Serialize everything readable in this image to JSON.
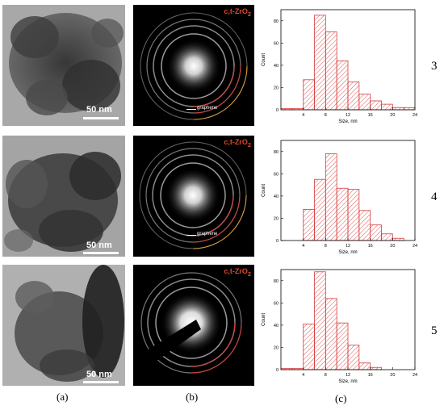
{
  "rows": [
    {
      "sample": "3",
      "tem": {
        "scale_label": "50 nm"
      },
      "saed": {
        "phase_label": "c,t-ZrO",
        "phase_sub": "2",
        "graphene_label": "graphene"
      }
    },
    {
      "sample": "4",
      "tem": {
        "scale_label": "50 nm"
      },
      "saed": {
        "phase_label": "c,t-ZrO",
        "phase_sub": "2",
        "graphene_label": "graphene"
      }
    },
    {
      "sample": "5",
      "tem": {
        "scale_label": "50 nm"
      },
      "saed": {
        "phase_label": "c,t-ZrO",
        "phase_sub": "2",
        "graphene_label": ""
      }
    }
  ],
  "column_labels": [
    "(a)",
    "(b)",
    "(c)"
  ],
  "colors": {
    "bar_edge": "#d43c3c",
    "hatch": "#e05555",
    "phase_text": "#e0472a"
  },
  "chart_data": [
    {
      "type": "bar",
      "xlabel": "Size, nm",
      "ylabel": "Count",
      "xlim": [
        0,
        24
      ],
      "ylim": [
        0,
        90
      ],
      "xticks": [
        4,
        8,
        12,
        16,
        20,
        24
      ],
      "yticks": [
        0,
        20,
        40,
        60,
        80
      ],
      "bin_width": 2,
      "bins": [
        0,
        2,
        4,
        6,
        8,
        10,
        12,
        14,
        16,
        18,
        20,
        22
      ],
      "values": [
        1,
        1,
        27,
        85,
        70,
        44,
        25,
        14,
        8,
        5,
        2,
        2
      ]
    },
    {
      "type": "bar",
      "xlabel": "Size, nm",
      "ylabel": "Count",
      "xlim": [
        0,
        24
      ],
      "ylim": [
        0,
        90
      ],
      "xticks": [
        4,
        8,
        12,
        16,
        20,
        24
      ],
      "yticks": [
        0,
        20,
        40,
        60,
        80
      ],
      "bin_width": 2,
      "bins": [
        4,
        6,
        8,
        10,
        12,
        14,
        16,
        18,
        20
      ],
      "values": [
        28,
        55,
        78,
        47,
        46,
        27,
        14,
        6,
        2
      ]
    },
    {
      "type": "bar",
      "xlabel": "Size, nm",
      "ylabel": "Count",
      "xlim": [
        0,
        24
      ],
      "ylim": [
        0,
        90
      ],
      "xticks": [
        4,
        8,
        12,
        16,
        20,
        24
      ],
      "yticks": [
        0,
        20,
        40,
        60,
        80
      ],
      "bin_width": 2,
      "bins": [
        0,
        2,
        4,
        6,
        8,
        10,
        12,
        14,
        16
      ],
      "values": [
        1,
        1,
        41,
        88,
        64,
        42,
        22,
        6,
        2
      ]
    }
  ]
}
